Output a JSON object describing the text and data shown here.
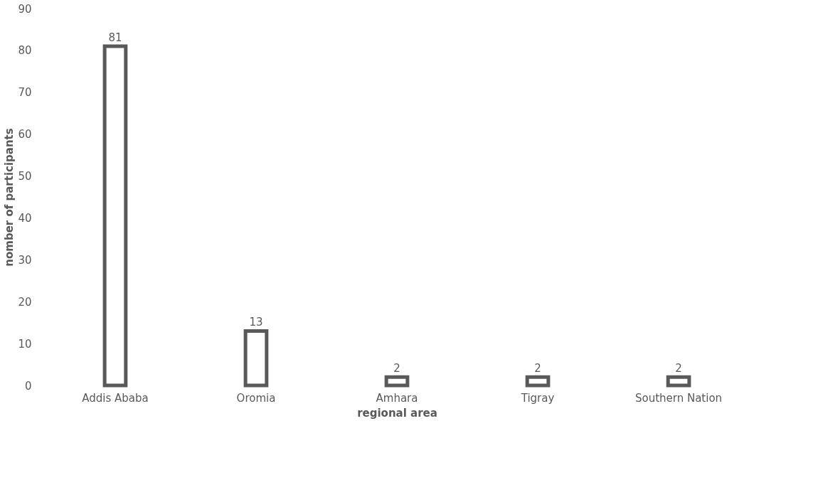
{
  "chart_data": {
    "type": "bar",
    "xlabel": "regional area",
    "ylabel": "nomber  of participants",
    "categories": [
      "Addis Ababa",
      "Oromia",
      "Amhara",
      "Tigray",
      "Southern Nation"
    ],
    "values": [
      81,
      13,
      2,
      2,
      2
    ],
    "color": "#595959",
    "ylim": [
      0,
      90
    ],
    "yticks": [
      0,
      10,
      20,
      30,
      40,
      50,
      60,
      70,
      80,
      90
    ],
    "grid": false,
    "data_labels": true
  }
}
